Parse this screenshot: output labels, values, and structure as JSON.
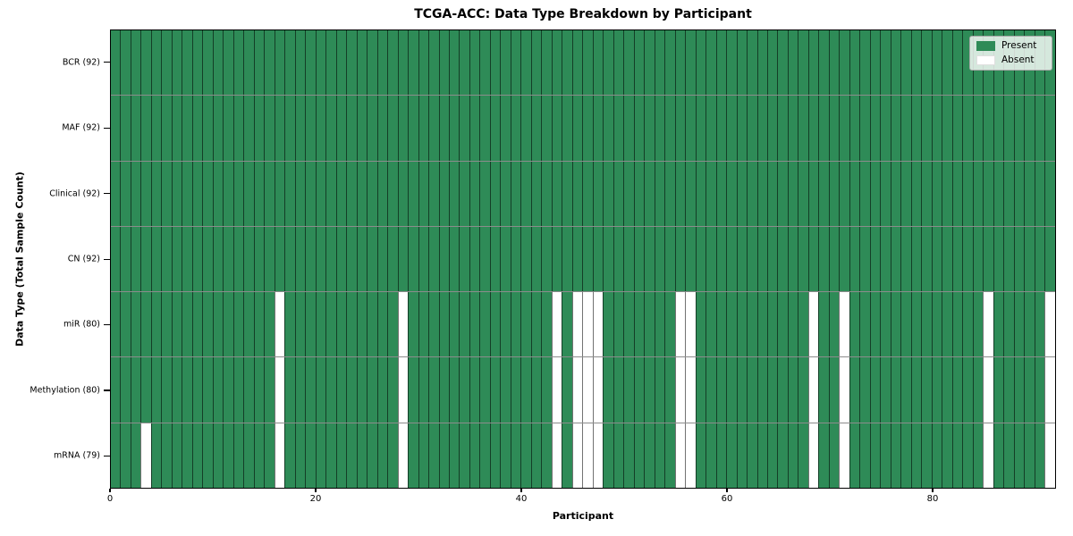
{
  "title": "TCGA-ACC: Data Type Breakdown by Participant",
  "axes": {
    "xlabel": "Participant",
    "ylabel": "Data Type (Total Sample Count)",
    "x_ticks": [
      0,
      20,
      40,
      60,
      80
    ]
  },
  "legend": {
    "items": [
      {
        "name": "present",
        "label": "Present",
        "color": "#2E8B57",
        "border": "none"
      },
      {
        "name": "absent",
        "label": "Absent",
        "color": "#FFFFFF",
        "border": "1px solid #e0e0e0"
      }
    ]
  },
  "colors": {
    "present": "#2E8B57",
    "absent": "#FFFFFF",
    "plot_border": "#000000"
  },
  "chart_data": {
    "type": "heatmap",
    "title": "TCGA-ACC: Data Type Breakdown by Participant",
    "xlabel": "Participant",
    "ylabel": "Data Type (Total Sample Count)",
    "n_participants": 92,
    "x_ticks": [
      0,
      20,
      40,
      60,
      80
    ],
    "value_legend": {
      "1": "Present",
      "0": "Absent"
    },
    "legend_position": "upper right",
    "grid": true,
    "rows": [
      {
        "label": "BCR (92)",
        "present_count": 92,
        "absent_participants": []
      },
      {
        "label": "MAF (92)",
        "present_count": 92,
        "absent_participants": []
      },
      {
        "label": "Clinical (92)",
        "present_count": 92,
        "absent_participants": []
      },
      {
        "label": "CN (92)",
        "present_count": 92,
        "absent_participants": []
      },
      {
        "label": "miR (80)",
        "present_count": 80,
        "absent_participants": [
          16,
          28,
          43,
          45,
          46,
          47,
          55,
          56,
          68,
          71,
          85,
          91
        ]
      },
      {
        "label": "Methylation (80)",
        "present_count": 80,
        "absent_participants": [
          16,
          28,
          43,
          45,
          46,
          47,
          55,
          56,
          68,
          71,
          85,
          91
        ]
      },
      {
        "label": "mRNA (79)",
        "present_count": 79,
        "absent_participants": [
          3,
          16,
          28,
          43,
          45,
          46,
          47,
          55,
          56,
          68,
          71,
          85,
          91
        ]
      }
    ]
  }
}
